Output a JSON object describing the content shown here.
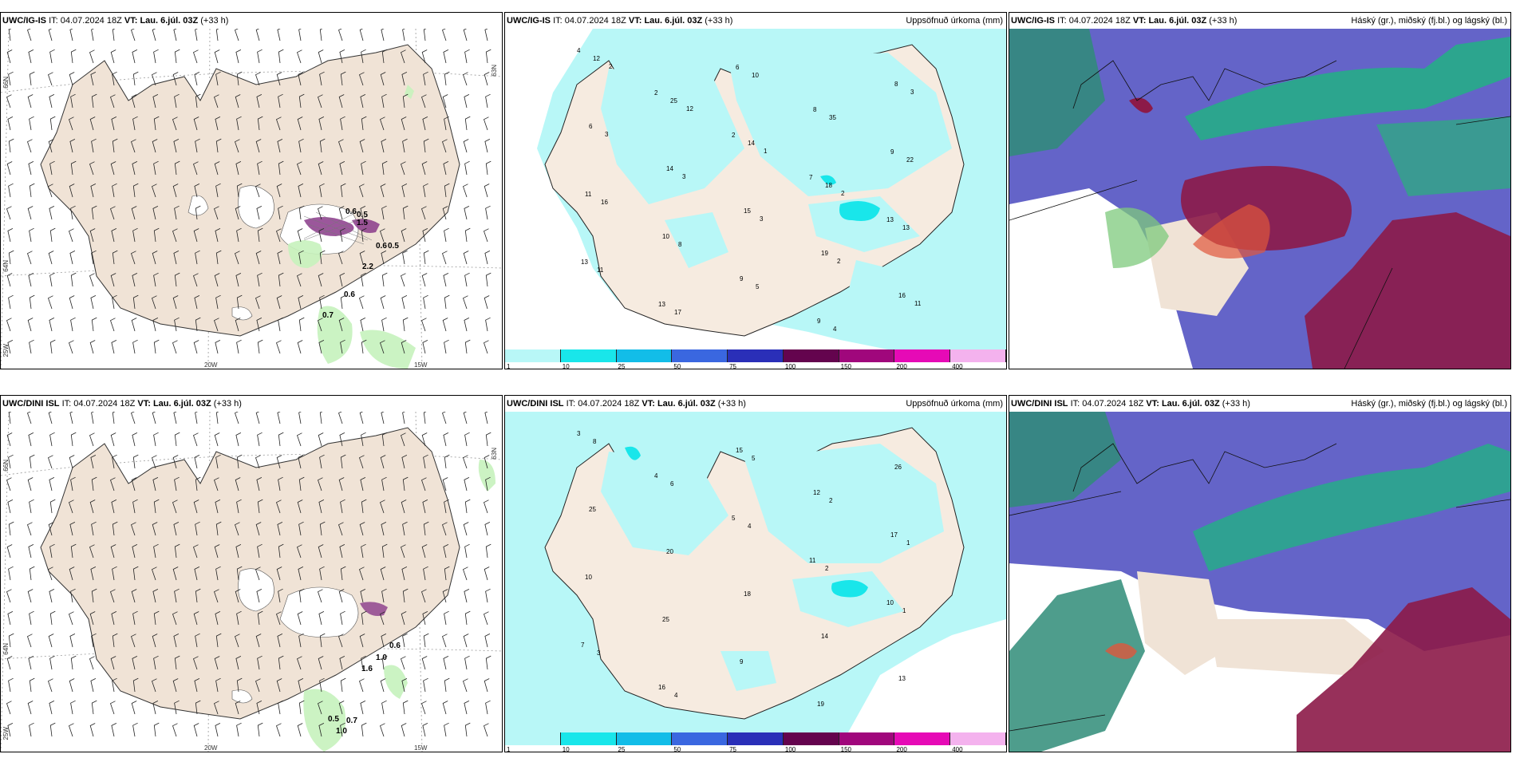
{
  "panels": [
    {
      "model": "UWC/IG-IS",
      "it_label": "IT:",
      "it_value": "04.07.2024 18Z",
      "vt_label": "VT:",
      "vt_value": "Lau. 6.júl. 03Z",
      "lead": "(+33 h)",
      "right_title": ""
    },
    {
      "model": "UWC/IG-IS",
      "it_label": "IT:",
      "it_value": "04.07.2024 18Z",
      "vt_label": "VT:",
      "vt_value": "Lau. 6.júl. 03Z",
      "lead": "(+33 h)",
      "right_title": "Uppsöfnuð úrkoma (mm)"
    },
    {
      "model": "UWC/IG-IS",
      "it_label": "IT:",
      "it_value": "04.07.2024 18Z",
      "vt_label": "VT:",
      "vt_value": "Lau. 6.júl. 03Z",
      "lead": "(+33 h)",
      "right_title": "Háský (gr.), miðský (fj.bl.) og lágský (bl.)"
    },
    {
      "model": "UWC/DINI ISL",
      "it_label": "IT:",
      "it_value": "04.07.2024 18Z",
      "vt_label": "VT:",
      "vt_value": "Lau. 6.júl. 03Z",
      "lead": "(+33 h)",
      "right_title": ""
    },
    {
      "model": "UWC/DINI ISL",
      "it_label": "IT:",
      "it_value": "04.07.2024 18Z",
      "vt_label": "VT:",
      "vt_value": "Lau. 6.júl. 03Z",
      "lead": "(+33 h)",
      "right_title": "Uppsöfnuð úrkoma (mm)"
    },
    {
      "model": "UWC/DINI ISL",
      "it_label": "IT:",
      "it_value": "04.07.2024 18Z",
      "vt_label": "VT:",
      "vt_value": "Lau. 6.júl. 03Z",
      "lead": "(+33 h)",
      "right_title": "Háský (gr.), miðský (fj.bl.) og lágský (bl.)"
    }
  ],
  "axes": {
    "lat66": "66N",
    "lat64": "64N",
    "lat63": "63N",
    "lon20": "20W",
    "lon15": "15W",
    "lon25": "25W"
  },
  "colorbar": {
    "ticks": [
      "1",
      "10",
      "25",
      "50",
      "75",
      "100",
      "150",
      "200",
      "400"
    ],
    "colors": [
      "#b8f7f7",
      "#19e6ea",
      "#12bde8",
      "#3a67e0",
      "#2a2fb8",
      "#64044e",
      "#a0077c",
      "#e60ab6",
      "#f4b2ee"
    ]
  },
  "wind_precip_labels_top": [
    "0.6",
    "0.5",
    "1.5",
    "0.6",
    "0.5",
    "2.2",
    "0.6",
    "0.7"
  ],
  "wind_precip_labels_bottom": [
    "0.6",
    "1.0",
    "1.6",
    "0.5",
    "0.7",
    "1.0"
  ],
  "accum_numbers_top": [
    "4",
    "2",
    "2",
    "7",
    "13",
    "13",
    "13",
    "6",
    "8",
    "9",
    "11",
    "10",
    "9",
    "9",
    "8",
    "6",
    "14",
    "15",
    "19",
    "16",
    "12",
    "25",
    "14",
    "18",
    "13",
    "11",
    "17",
    "10",
    "35",
    "22",
    "16",
    "8",
    "5",
    "4",
    "3",
    "3",
    "3",
    "3",
    "2",
    "11",
    "2",
    "12",
    "1",
    "2"
  ],
  "accum_numbers_bottom": [
    "3",
    "4",
    "5",
    "11",
    "10",
    "7",
    "16",
    "15",
    "12",
    "17",
    "10",
    "25",
    "9",
    "19",
    "26",
    "25",
    "20",
    "18",
    "14",
    "13",
    "8",
    "6",
    "4",
    "2",
    "1",
    "3",
    "4",
    "5",
    "2",
    "1"
  ]
}
